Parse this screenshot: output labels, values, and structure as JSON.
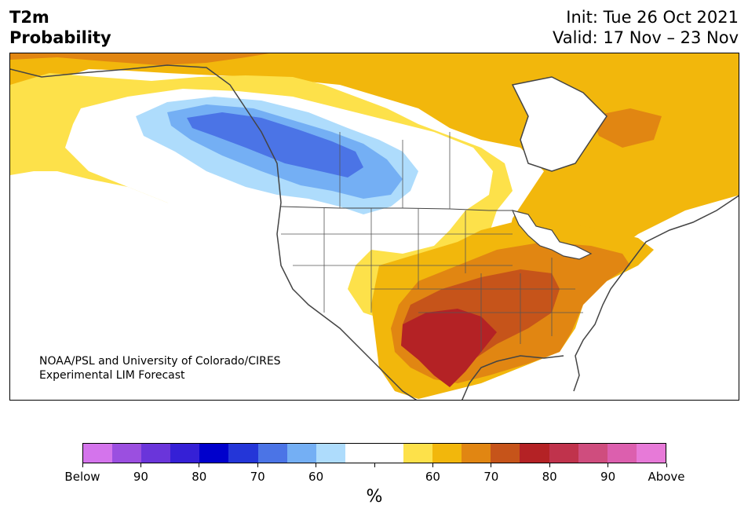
{
  "header": {
    "title_line1": "T2m",
    "title_line2": "Probability",
    "init": "Init: Tue 26 Oct 2021",
    "valid": "Valid: 17 Nov – 23 Nov"
  },
  "map": {
    "credit_line1": "NOAA/PSL and University of Colorado/CIRES",
    "credit_line2": "Experimental LIM Forecast",
    "colors": {
      "land_outline": "#444444",
      "cold_60": "#aedcfc",
      "cold_70": "#74aff4",
      "cold_80": "#4b74e6",
      "warm_60": "#fde14a",
      "warm_70": "#f2b70c",
      "warm_80": "#e18612",
      "warm_90": "#c6541a",
      "warm_100": "#b42225"
    }
  },
  "colorbar": {
    "colors": [
      "#d474ec",
      "#9b4fe0",
      "#6a35da",
      "#3520d6",
      "#0000cc",
      "#2436d8",
      "#4b74e6",
      "#74aff4",
      "#aedcfc",
      "#ffffff",
      "#ffffff",
      "#fde14a",
      "#f2b70c",
      "#e18612",
      "#c6541a",
      "#b42225",
      "#c0334c",
      "#cf4d7e",
      "#dc5fae",
      "#e77ad8"
    ],
    "labels": [
      "Below",
      "90",
      "80",
      "70",
      "60",
      "",
      "60",
      "70",
      "80",
      "90",
      "Above"
    ],
    "unit": "%"
  }
}
